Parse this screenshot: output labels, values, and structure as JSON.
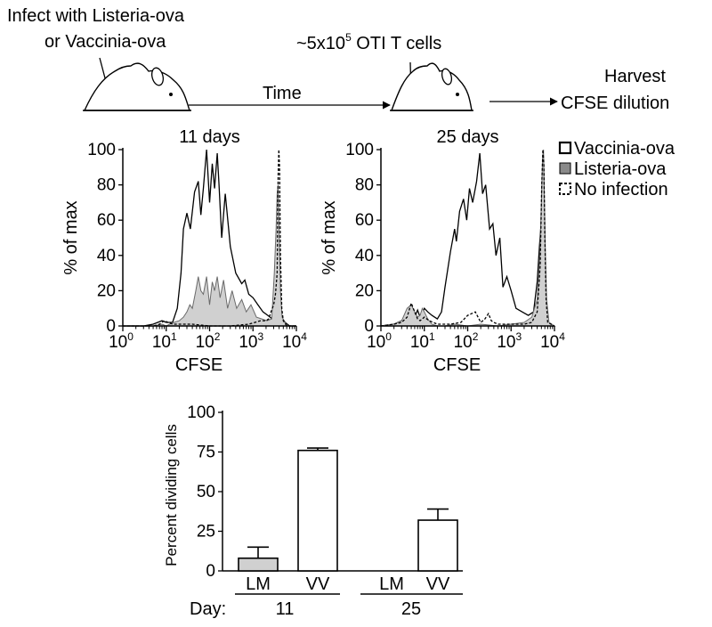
{
  "schematic": {
    "infect_line1": "Infect with Listeria-ova",
    "infect_line2": "or Vaccinia-ova",
    "transfer_prefix": "~5x10",
    "transfer_exp": "5",
    "transfer_suffix": " OTI T cells",
    "time_label": "Time",
    "harvest_line1": "Harvest",
    "harvest_line2": "CFSE dilution"
  },
  "legend": {
    "vaccinia": "Vaccinia-ova",
    "listeria": "Listeria-ova",
    "none": "No infection"
  },
  "colors": {
    "listeria_fill": "#d0d0d0",
    "listeria_swatch": "#8a8a8a",
    "bar_lm": "#d0d0d0",
    "bar_vv": "#ffffff",
    "stroke": "#000000"
  },
  "chart_data": [
    {
      "type": "line",
      "title": "11 days",
      "xlabel": "CFSE",
      "ylabel": "% of max",
      "xscale": "log",
      "xlim": [
        1,
        10000
      ],
      "ylim": [
        0,
        100
      ],
      "xticks": [
        {
          "base": "10",
          "exp": "0"
        },
        {
          "base": "10",
          "exp": "1"
        },
        {
          "base": "10",
          "exp": "2"
        },
        {
          "base": "10",
          "exp": "3"
        },
        {
          "base": "10",
          "exp": "4"
        }
      ],
      "yticks": [
        "0",
        "20",
        "40",
        "60",
        "80",
        "100"
      ],
      "series": [
        {
          "name": "Vaccinia-ova",
          "style": "solid",
          "x": [
            1,
            3,
            5,
            8,
            10,
            14,
            18,
            22,
            25,
            30,
            36,
            45,
            55,
            63,
            72,
            85,
            100,
            115,
            130,
            150,
            165,
            190,
            230,
            300,
            400,
            550,
            650,
            800,
            1000,
            1300,
            1700,
            2200,
            2800,
            3300,
            3600,
            3900,
            4200,
            4600,
            5500,
            7000,
            10000
          ],
          "y": [
            0,
            0,
            1,
            3,
            2,
            2,
            10,
            30,
            55,
            64,
            55,
            76,
            82,
            63,
            78,
            100,
            70,
            92,
            78,
            98,
            80,
            50,
            75,
            45,
            30,
            24,
            26,
            18,
            16,
            12,
            8,
            6,
            4,
            10,
            60,
            42,
            20,
            5,
            2,
            0,
            0
          ]
        },
        {
          "name": "Listeria-ova",
          "style": "filled",
          "x": [
            1,
            5,
            8,
            10,
            12,
            15,
            20,
            25,
            30,
            35,
            40,
            48,
            55,
            63,
            72,
            85,
            100,
            115,
            130,
            150,
            175,
            210,
            260,
            330,
            420,
            550,
            700,
            900,
            1200,
            1600,
            2100,
            2700,
            3100,
            3400,
            3600,
            3800,
            4000,
            4300,
            4700,
            6000,
            10000
          ],
          "y": [
            0,
            0,
            1,
            0,
            1,
            2,
            3,
            5,
            8,
            12,
            10,
            20,
            28,
            20,
            18,
            28,
            12,
            25,
            20,
            28,
            16,
            26,
            10,
            20,
            10,
            15,
            8,
            12,
            5,
            4,
            3,
            4,
            30,
            55,
            75,
            80,
            55,
            20,
            5,
            0,
            0
          ]
        },
        {
          "name": "No infection",
          "style": "dashed",
          "x": [
            1,
            5,
            7,
            9,
            11,
            14,
            20,
            40,
            100,
            300,
            800,
            1500,
            2000,
            2300,
            2600,
            3000,
            3300,
            3600,
            3800,
            3950,
            4100,
            4300,
            4600,
            5000,
            6000,
            10000
          ],
          "y": [
            0,
            0,
            1,
            3,
            2,
            1,
            1,
            1,
            0,
            0,
            1,
            3,
            3,
            4,
            8,
            12,
            18,
            30,
            85,
            100,
            90,
            40,
            10,
            3,
            0,
            0
          ]
        }
      ]
    },
    {
      "type": "line",
      "title": "25 days",
      "xlabel": "CFSE",
      "ylabel": "% of max",
      "xscale": "log",
      "xlim": [
        1,
        10000
      ],
      "ylim": [
        0,
        100
      ],
      "xticks": [
        {
          "base": "10",
          "exp": "0"
        },
        {
          "base": "10",
          "exp": "1"
        },
        {
          "base": "10",
          "exp": "2"
        },
        {
          "base": "10",
          "exp": "3"
        },
        {
          "base": "10",
          "exp": "4"
        }
      ],
      "yticks": [
        "0",
        "20",
        "40",
        "60",
        "80",
        "100"
      ],
      "series": [
        {
          "name": "Vaccinia-ova",
          "style": "solid",
          "x": [
            1,
            2,
            3,
            4,
            5,
            6,
            7,
            8,
            9,
            10,
            12,
            15,
            20,
            25,
            30,
            40,
            50,
            55,
            65,
            80,
            95,
            110,
            130,
            160,
            190,
            220,
            260,
            320,
            380,
            450,
            550,
            650,
            800,
            1000,
            1300,
            1800,
            2500,
            3300,
            4000,
            4500,
            5000,
            5400,
            5700,
            6000,
            6500,
            7500,
            10000
          ],
          "y": [
            0,
            1,
            3,
            6,
            10,
            5,
            9,
            5,
            7,
            10,
            8,
            6,
            4,
            8,
            22,
            42,
            55,
            48,
            65,
            72,
            60,
            78,
            70,
            82,
            98,
            75,
            80,
            55,
            58,
            40,
            50,
            22,
            28,
            20,
            10,
            8,
            6,
            8,
            25,
            45,
            60,
            52,
            30,
            10,
            3,
            0,
            0
          ]
        },
        {
          "name": "Listeria-ova",
          "style": "filled",
          "x": [
            1,
            2,
            3,
            4,
            5,
            6,
            7,
            8,
            9,
            10,
            12,
            15,
            20,
            30,
            50,
            100,
            200,
            500,
            1000,
            2000,
            3000,
            4000,
            4600,
            5000,
            5300,
            5600,
            5900,
            6200,
            6600,
            7500,
            10000
          ],
          "y": [
            0,
            1,
            3,
            10,
            12,
            8,
            5,
            6,
            10,
            8,
            4,
            1,
            0,
            0,
            1,
            0,
            1,
            0,
            1,
            2,
            5,
            15,
            40,
            70,
            95,
            100,
            70,
            40,
            15,
            2,
            0
          ]
        },
        {
          "name": "No infection",
          "style": "dashed",
          "x": [
            1,
            2,
            3,
            4,
            5,
            6,
            7,
            8,
            10,
            13,
            20,
            40,
            70,
            100,
            150,
            200,
            250,
            300,
            350,
            400,
            500,
            700,
            1000,
            2000,
            3000,
            4000,
            4700,
            5100,
            5400,
            5700,
            6000,
            6400,
            7000,
            10000
          ],
          "y": [
            0,
            1,
            2,
            5,
            13,
            8,
            4,
            3,
            5,
            3,
            1,
            1,
            2,
            6,
            8,
            2,
            4,
            7,
            3,
            2,
            1,
            1,
            1,
            1,
            2,
            8,
            35,
            80,
            100,
            92,
            50,
            15,
            2,
            0
          ]
        }
      ]
    },
    {
      "type": "bar",
      "ylabel": "Percent dividing cells",
      "ylim": [
        0,
        100
      ],
      "yticks": [
        "0",
        "25",
        "50",
        "75",
        "100"
      ],
      "categories": [
        "LM",
        "VV",
        "LM",
        "VV"
      ],
      "values": [
        8,
        76,
        0,
        32
      ],
      "errors": [
        7,
        1.5,
        0,
        7
      ],
      "bar_colors": [
        "#d0d0d0",
        "#ffffff",
        "#d0d0d0",
        "#ffffff"
      ],
      "day_label": "Day:",
      "groups": [
        "11",
        "25"
      ]
    }
  ]
}
